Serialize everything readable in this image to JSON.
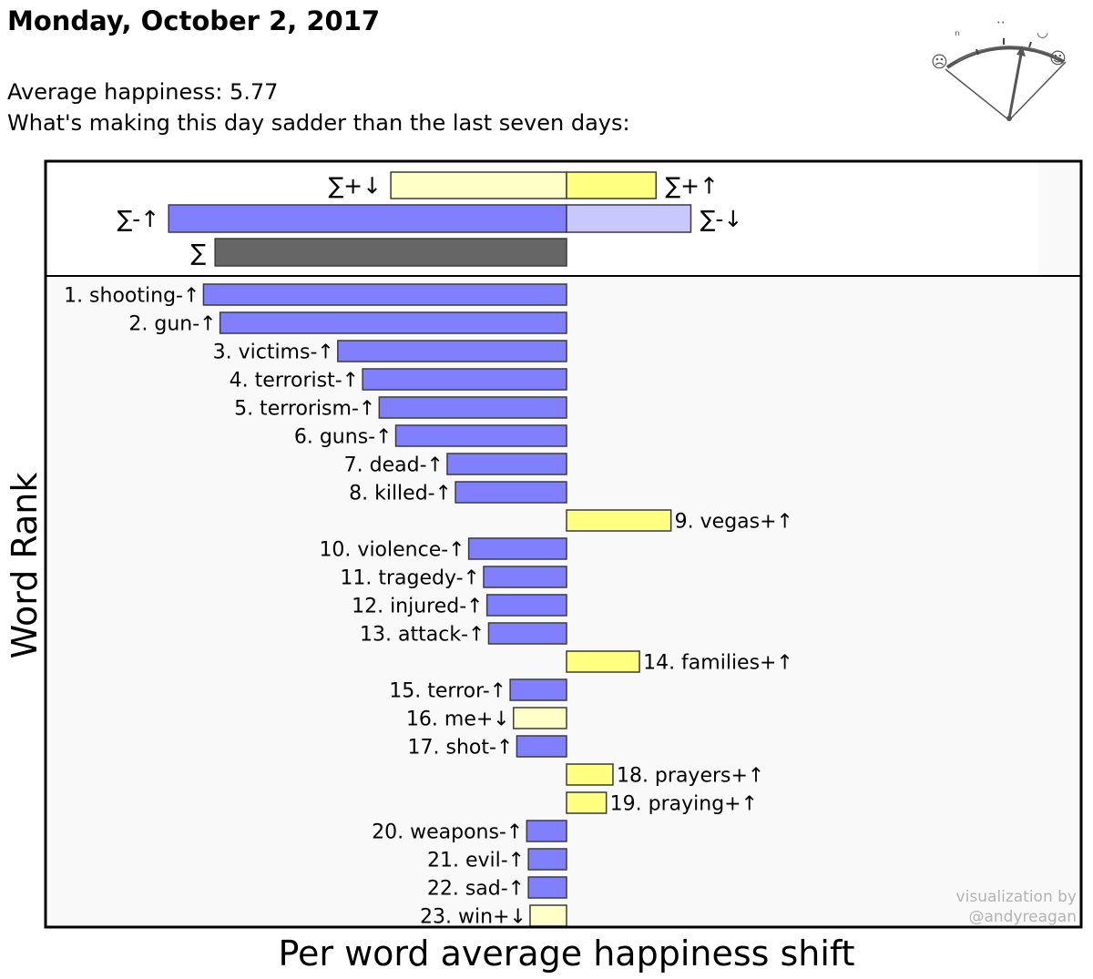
{
  "header": {
    "title": "Monday, October 2, 2017",
    "average_happiness": "Average happiness: 5.77",
    "subtitle": "What's making this day sadder than the last seven days:"
  },
  "credit": {
    "line1": "visualization by",
    "line2": "@andyreagan"
  },
  "gauge": {
    "icon": "happiness-gauge-icon",
    "scale_faces": [
      "☹",
      "ⁿ",
      "··",
      "◡",
      "☺"
    ]
  },
  "colors": {
    "positive_up": "#ffff80",
    "positive_down": "#ffffc8",
    "negative_up": "#8080ff",
    "negative_down": "#c8c8ff",
    "sum": "#666666",
    "plot_background": "#f9f9f9",
    "bar_stroke": "#3a3a3a"
  },
  "chart_data": {
    "type": "bar",
    "orientation": "horizontal",
    "xlabel": "Per word average happiness shift",
    "ylabel": "Word Rank",
    "summary": [
      {
        "label": "∑+↓",
        "value": -1.06,
        "kind": "positive_down"
      },
      {
        "label": "∑+↑",
        "value": 0.54,
        "kind": "positive_up"
      },
      {
        "label": "∑-↑",
        "value": -2.4,
        "kind": "negative_up"
      },
      {
        "label": "∑-↓",
        "value": 0.75,
        "kind": "negative_down"
      },
      {
        "label": "∑",
        "value": -2.12,
        "kind": "sum"
      }
    ],
    "words": [
      {
        "rank": 1,
        "word": "shooting",
        "symbol": "-↑",
        "value": -2.19
      },
      {
        "rank": 2,
        "word": "gun",
        "symbol": "-↑",
        "value": -2.09
      },
      {
        "rank": 3,
        "word": "victims",
        "symbol": "-↑",
        "value": -1.38
      },
      {
        "rank": 4,
        "word": "terrorist",
        "symbol": "-↑",
        "value": -1.23
      },
      {
        "rank": 5,
        "word": "terrorism",
        "symbol": "-↑",
        "value": -1.13
      },
      {
        "rank": 6,
        "word": "guns",
        "symbol": "-↑",
        "value": -1.03
      },
      {
        "rank": 7,
        "word": "dead",
        "symbol": "-↑",
        "value": -0.72
      },
      {
        "rank": 8,
        "word": "killed",
        "symbol": "-↑",
        "value": -0.67
      },
      {
        "rank": 9,
        "word": "vegas",
        "symbol": "+↑",
        "value": 0.63
      },
      {
        "rank": 10,
        "word": "violence",
        "symbol": "-↑",
        "value": -0.59
      },
      {
        "rank": 11,
        "word": "tragedy",
        "symbol": "-↑",
        "value": -0.5
      },
      {
        "rank": 12,
        "word": "injured",
        "symbol": "-↑",
        "value": -0.48
      },
      {
        "rank": 13,
        "word": "attack",
        "symbol": "-↑",
        "value": -0.47
      },
      {
        "rank": 14,
        "word": "families",
        "symbol": "+↑",
        "value": 0.44
      },
      {
        "rank": 15,
        "word": "terror",
        "symbol": "-↑",
        "value": -0.34
      },
      {
        "rank": 16,
        "word": "me",
        "symbol": "+↓",
        "value": -0.32
      },
      {
        "rank": 17,
        "word": "shot",
        "symbol": "-↑",
        "value": -0.3
      },
      {
        "rank": 18,
        "word": "prayers",
        "symbol": "+↑",
        "value": 0.28
      },
      {
        "rank": 19,
        "word": "praying",
        "symbol": "+↑",
        "value": 0.24
      },
      {
        "rank": 20,
        "word": "weapons",
        "symbol": "-↑",
        "value": -0.24
      },
      {
        "rank": 21,
        "word": "evil",
        "symbol": "-↑",
        "value": -0.23
      },
      {
        "rank": 22,
        "word": "sad",
        "symbol": "-↑",
        "value": -0.23
      },
      {
        "rank": 23,
        "word": "win",
        "symbol": "+↓",
        "value": -0.22
      }
    ]
  }
}
